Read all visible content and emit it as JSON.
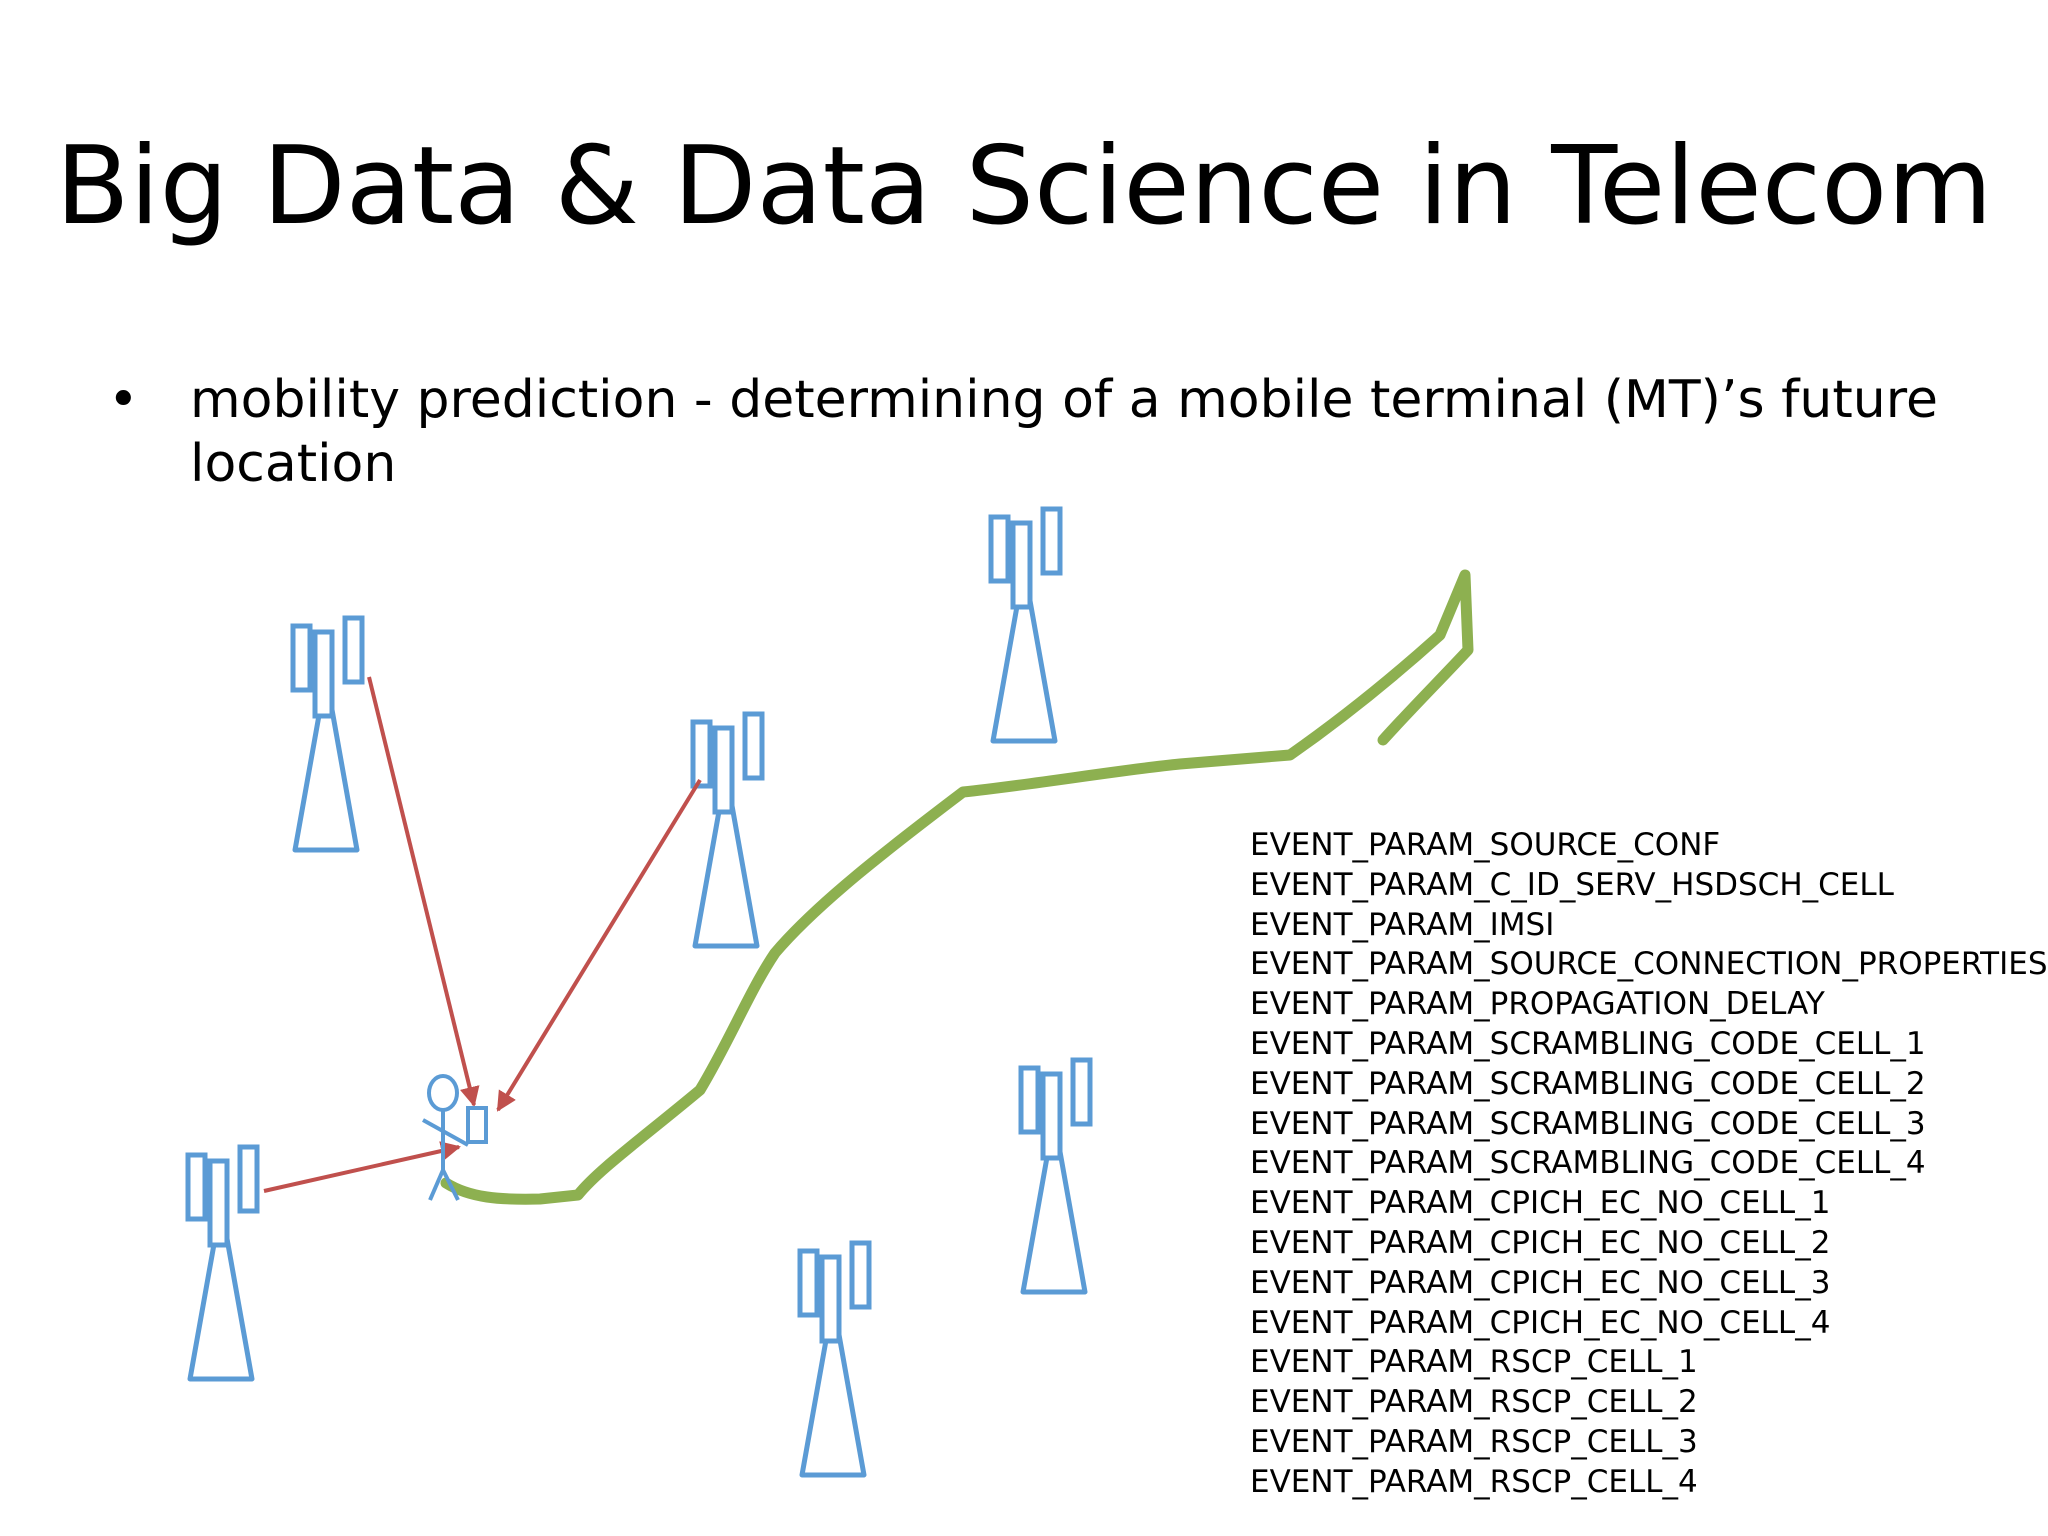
{
  "slide": {
    "title": "Big Data & Data Science in Telecom",
    "bullet": {
      "marker": "•",
      "text": "mobility prediction - determining of a mobile terminal (MT)’s future location"
    }
  },
  "diagram": {
    "colors": {
      "tower": "#5b9bd5",
      "signal_arrow": "#c0504d",
      "path": "#8db050",
      "user": "#5b9bd5"
    },
    "icons": [
      "cell-tower-icon",
      "mobile-user-icon",
      "arrow-icon"
    ],
    "event_params": [
      "EVENT_PARAM_SOURCE_CONF",
      "EVENT_PARAM_C_ID_SERV_HSDSCH_CELL",
      "EVENT_PARAM_IMSI",
      "EVENT_PARAM_SOURCE_CONNECTION_PROPERTIES",
      "EVENT_PARAM_PROPAGATION_DELAY",
      "EVENT_PARAM_SCRAMBLING_CODE_CELL_1",
      "EVENT_PARAM_SCRAMBLING_CODE_CELL_2",
      "EVENT_PARAM_SCRAMBLING_CODE_CELL_3",
      "EVENT_PARAM_SCRAMBLING_CODE_CELL_4",
      "EVENT_PARAM_CPICH_EC_NO_CELL_1",
      "EVENT_PARAM_CPICH_EC_NO_CELL_2",
      "EVENT_PARAM_CPICH_EC_NO_CELL_3",
      "EVENT_PARAM_CPICH_EC_NO_CELL_4",
      "EVENT_PARAM_RSCP_CELL_1",
      "EVENT_PARAM_RSCP_CELL_2",
      "EVENT_PARAM_RSCP_CELL_3",
      "EVENT_PARAM_RSCP_CELL_4"
    ]
  }
}
